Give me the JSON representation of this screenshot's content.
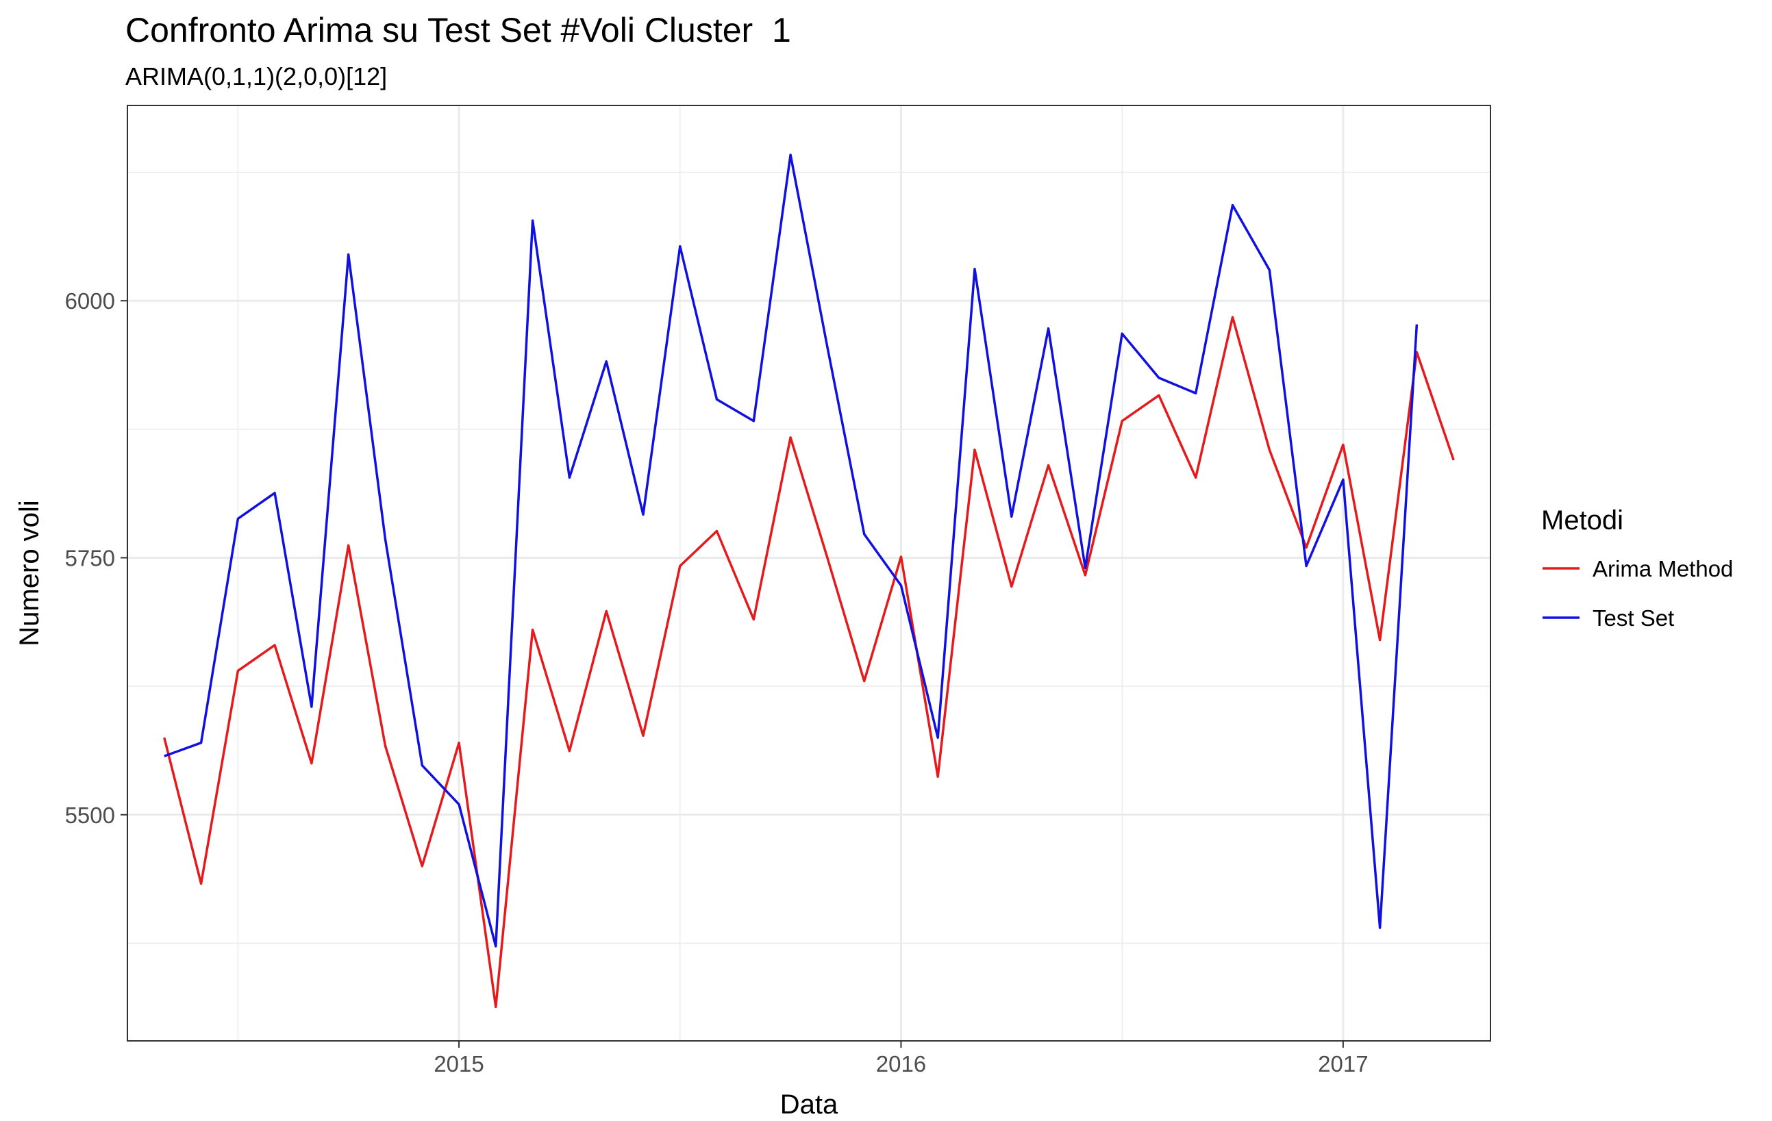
{
  "chart_data": {
    "type": "line",
    "title": "Confronto Arima su Test Set #Voli Cluster  1",
    "subtitle": "ARIMA(0,1,1)(2,0,0)[12]",
    "xlabel": "Data",
    "ylabel": "Numero voli",
    "x_ticks": [
      "2015",
      "2016",
      "2017"
    ],
    "y_ticks": [
      5500,
      5750,
      6000
    ],
    "xlim": [
      "2014-04",
      "2017-05"
    ],
    "ylim": [
      5280,
      6190
    ],
    "grid": true,
    "legend": {
      "title": "Metodi",
      "position": "right"
    },
    "x": [
      "2014-05",
      "2014-06",
      "2014-07",
      "2014-08",
      "2014-09",
      "2014-10",
      "2014-11",
      "2014-12",
      "2015-01",
      "2015-02",
      "2015-03",
      "2015-04",
      "2015-05",
      "2015-06",
      "2015-07",
      "2015-08",
      "2015-09",
      "2015-10",
      "2015-11",
      "2015-12",
      "2016-01",
      "2016-02",
      "2016-03",
      "2016-04",
      "2016-05",
      "2016-06",
      "2016-07",
      "2016-08",
      "2016-09",
      "2016-10",
      "2016-11",
      "2016-12",
      "2017-01",
      "2017-02",
      "2017-03",
      "2017-04"
    ],
    "series": [
      {
        "name": "Arima Method",
        "color": "#e41a1c",
        "values": [
          5575,
          5433,
          5640,
          5665,
          5550,
          5762,
          5567,
          5450,
          5570,
          5313,
          5680,
          5562,
          5698,
          5577,
          5742,
          5776,
          5690,
          5867,
          5750,
          5630,
          5751,
          5537,
          5855,
          5722,
          5840,
          5733,
          5883,
          5908,
          5828,
          5984,
          5855,
          5760,
          5860,
          5670,
          5950,
          5845
        ]
      },
      {
        "name": "Test Set",
        "color": "#1010e0",
        "values": [
          5557,
          5570,
          5788,
          5813,
          5605,
          6045,
          5768,
          5548,
          5510,
          5372,
          6078,
          5828,
          5941,
          5792,
          6053,
          5904,
          5883,
          6142,
          5955,
          5773,
          5723,
          5575,
          6031,
          5790,
          5973,
          5740,
          5968,
          5925,
          5910,
          6093,
          6030,
          5742,
          5826,
          5390,
          5977,
          null
        ]
      }
    ]
  }
}
